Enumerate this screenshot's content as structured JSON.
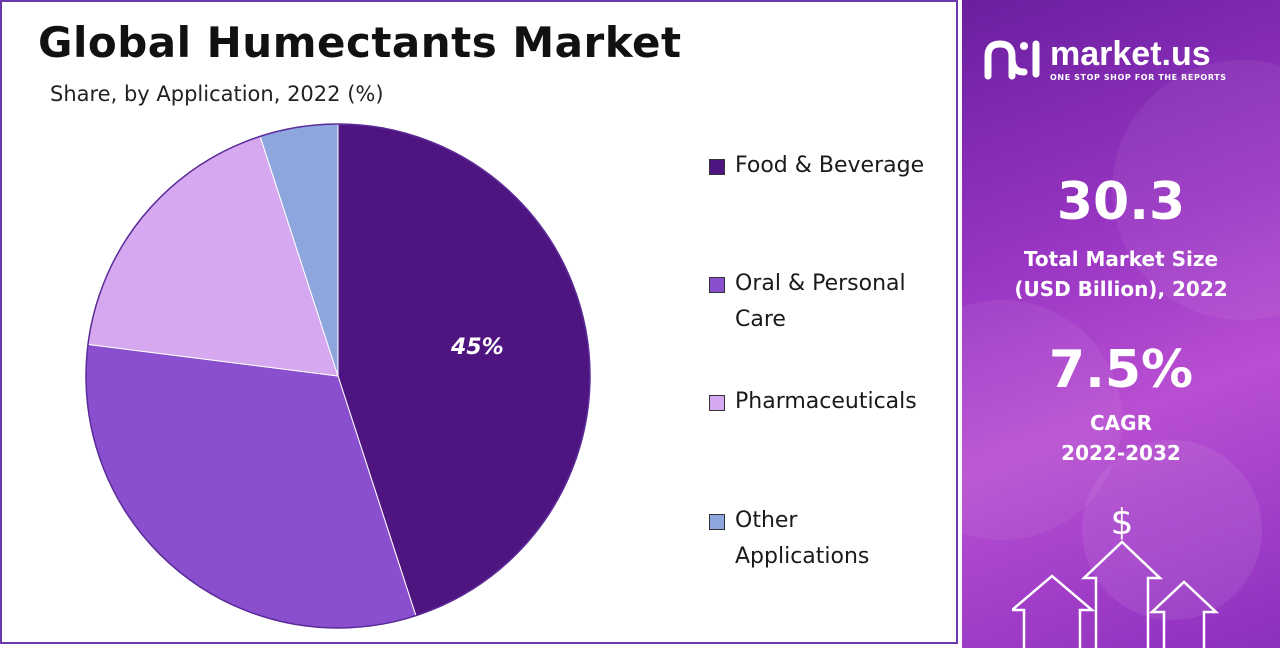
{
  "header": {
    "title": "Global Humectants Market",
    "subtitle": "Share, by Application, 2022 (%)"
  },
  "chart_data": {
    "type": "pie",
    "title": "Global Humectants Market",
    "subtitle": "Share, by Application, 2022 (%)",
    "categories": [
      "Food & Beverage",
      "Oral & Personal Care",
      "Pharmaceuticals",
      "Other Applications"
    ],
    "values": [
      45,
      32,
      18,
      5
    ],
    "colors": [
      "#4e1480",
      "#8a4fcf",
      "#d6a8ef",
      "#8ea6de"
    ],
    "data_labels": [
      {
        "category": "Food & Beverage",
        "text": "45%"
      }
    ],
    "legend_position": "right",
    "legend": [
      {
        "label_lines": [
          "Food & Beverage"
        ]
      },
      {
        "label_lines": [
          "Oral & Personal",
          "Care"
        ]
      },
      {
        "label_lines": [
          "Pharmaceuticals"
        ]
      },
      {
        "label_lines": [
          "Other",
          "Applications"
        ]
      }
    ]
  },
  "brand": {
    "name": "market.us",
    "tagline": "ONE STOP SHOP FOR THE REPORTS",
    "logo_icon": "market-us-logo-icon"
  },
  "stats": {
    "market_size_value": "30.3",
    "market_size_label_1": "Total Market Size",
    "market_size_label_2": "(USD Billion), 2022",
    "cagr_value": "7.5%",
    "cagr_label_1": "CAGR",
    "cagr_label_2": "2022-2032",
    "currency_symbol": "$"
  },
  "colors": {
    "panel_accent": "#9a36c4",
    "border": "#6a3aa8"
  }
}
